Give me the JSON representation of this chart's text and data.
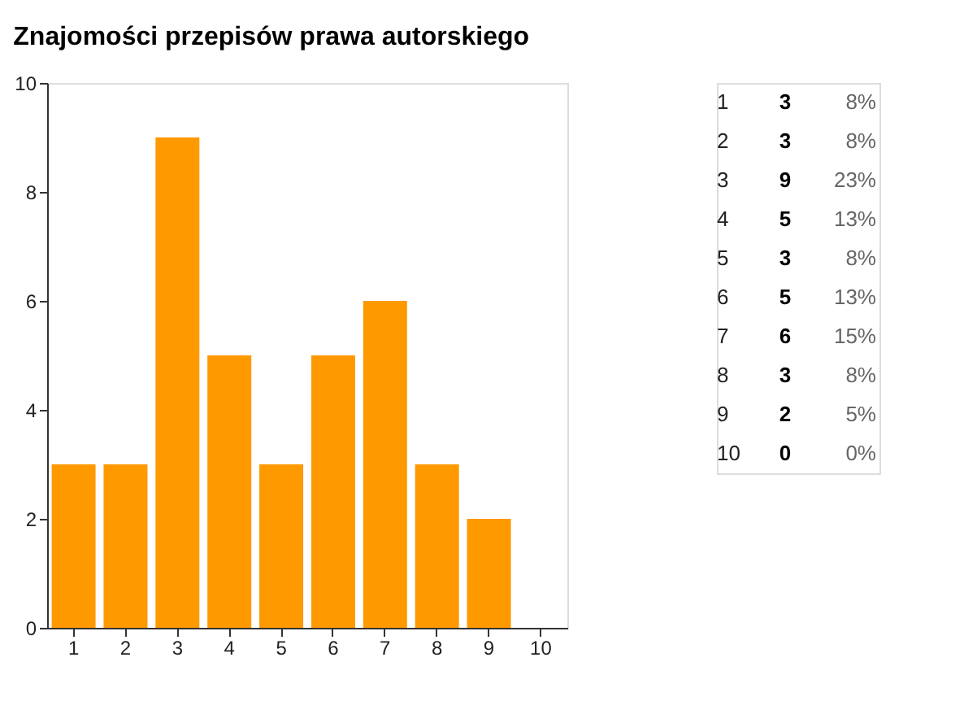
{
  "chart_data": {
    "type": "bar",
    "title": "Znajomości przepisów prawa autorskiego",
    "categories": [
      "1",
      "2",
      "3",
      "4",
      "5",
      "6",
      "7",
      "8",
      "9",
      "10"
    ],
    "values": [
      3,
      3,
      9,
      5,
      3,
      5,
      6,
      3,
      2,
      0
    ],
    "color": "#ff9900",
    "ylim": [
      0,
      10
    ],
    "yticks": [
      0,
      2,
      4,
      6,
      8,
      10
    ],
    "grid": false,
    "annotations": [
      "3",
      "8%",
      "3",
      "8%",
      "9",
      "23%",
      "5",
      "13%",
      "3",
      "8%",
      "5",
      "13%",
      "6",
      "15%",
      "3",
      "8%",
      "2",
      "5%",
      "0",
      "0%"
    ]
  }
}
